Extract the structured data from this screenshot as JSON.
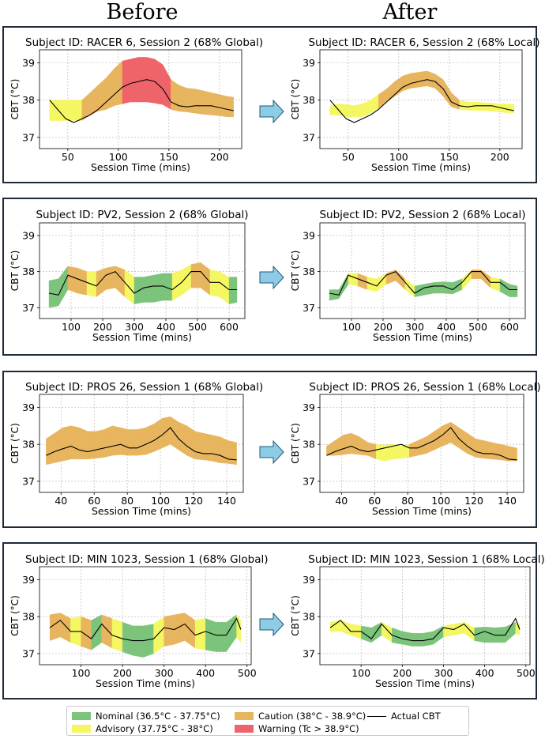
{
  "headers": {
    "before": "Before",
    "after": "After"
  },
  "colors": {
    "nominal": "#7cc47c",
    "advisory": "#f4f762",
    "caution": "#e8b55f",
    "warning": "#ef6469",
    "line": "#000000",
    "arrow": "#8ecbe4"
  },
  "legend": {
    "items": [
      {
        "key": "nominal",
        "label": "Nominal (36.5°C - 37.75°C)"
      },
      {
        "key": "advisory",
        "label": "Advisory (37.75°C - 38°C)"
      },
      {
        "key": "caution",
        "label": "Caution (38°C - 38.9°C)"
      },
      {
        "key": "warning",
        "label": "Warning (Tc > 38.9°C)"
      },
      {
        "key": "line",
        "label": "Actual CBT"
      }
    ]
  },
  "chart_data": [
    {
      "type": "area",
      "title": "Subject ID: RACER 6, Session 2 (68% Global)",
      "xlabel": "Session Time (mins)",
      "ylabel": "CBT (°C)",
      "xlim": [
        22,
        222
      ],
      "ylim": [
        36.7,
        39.35
      ],
      "xticks": [
        50,
        100,
        150,
        200
      ],
      "yticks": [
        37,
        38,
        39
      ],
      "x": [
        32,
        40,
        48,
        56,
        64,
        72,
        80,
        88,
        96,
        104,
        112,
        120,
        128,
        136,
        144,
        152,
        160,
        168,
        176,
        184,
        192,
        200,
        208,
        214
      ],
      "cbt": [
        38.0,
        37.75,
        37.5,
        37.4,
        37.5,
        37.6,
        37.75,
        37.95,
        38.15,
        38.35,
        38.45,
        38.5,
        38.55,
        38.5,
        38.3,
        37.95,
        37.85,
        37.82,
        37.85,
        37.85,
        37.85,
        37.8,
        37.75,
        37.72
      ],
      "upper": [
        38.0,
        38.0,
        38.0,
        38.0,
        38.0,
        38.2,
        38.4,
        38.6,
        38.85,
        39.05,
        39.1,
        39.15,
        39.15,
        39.1,
        38.95,
        38.55,
        38.4,
        38.32,
        38.3,
        38.25,
        38.2,
        38.15,
        38.1,
        38.08
      ],
      "lower": [
        37.45,
        37.45,
        37.45,
        37.45,
        37.45,
        37.6,
        37.7,
        37.75,
        37.85,
        37.9,
        37.95,
        37.95,
        37.95,
        37.92,
        37.88,
        37.75,
        37.7,
        37.68,
        37.65,
        37.62,
        37.6,
        37.58,
        37.55,
        37.55
      ],
      "zones": [
        "advisory",
        "advisory",
        "advisory",
        "advisory",
        "caution",
        "caution",
        "caution",
        "caution",
        "caution",
        "warning",
        "warning",
        "warning",
        "warning",
        "warning",
        "warning",
        "caution",
        "caution",
        "caution",
        "caution",
        "caution",
        "caution",
        "caution",
        "caution",
        "caution"
      ]
    },
    {
      "type": "area",
      "title": "Subject ID: RACER 6, Session 2 (68% Local)",
      "xlabel": "Session Time (mins)",
      "ylabel": "CBT (°C)",
      "xlim": [
        22,
        222
      ],
      "ylim": [
        36.7,
        39.35
      ],
      "xticks": [
        50,
        100,
        150,
        200
      ],
      "yticks": [
        37,
        38,
        39
      ],
      "x": [
        32,
        40,
        48,
        56,
        64,
        72,
        80,
        88,
        96,
        104,
        112,
        120,
        128,
        136,
        144,
        152,
        160,
        168,
        176,
        184,
        192,
        200,
        208,
        214
      ],
      "cbt": [
        38.0,
        37.75,
        37.5,
        37.4,
        37.5,
        37.6,
        37.75,
        37.95,
        38.15,
        38.35,
        38.45,
        38.5,
        38.55,
        38.5,
        38.3,
        37.95,
        37.85,
        37.82,
        37.85,
        37.85,
        37.85,
        37.8,
        37.75,
        37.72
      ],
      "upper": [
        37.85,
        37.9,
        37.88,
        37.85,
        37.9,
        38.0,
        38.15,
        38.3,
        38.5,
        38.65,
        38.72,
        38.75,
        38.78,
        38.7,
        38.55,
        38.2,
        38.0,
        37.95,
        37.95,
        37.93,
        37.92,
        37.9,
        37.9,
        37.88
      ],
      "lower": [
        37.6,
        37.6,
        37.55,
        37.55,
        37.55,
        37.65,
        37.78,
        37.95,
        38.1,
        38.25,
        38.32,
        38.35,
        38.38,
        38.32,
        38.1,
        37.82,
        37.75,
        37.73,
        37.72,
        37.72,
        37.7,
        37.68,
        37.66,
        37.66
      ],
      "zones": [
        "advisory",
        "advisory",
        "advisory",
        "advisory",
        "advisory",
        "advisory",
        "caution",
        "caution",
        "caution",
        "caution",
        "caution",
        "caution",
        "caution",
        "caution",
        "caution",
        "caution",
        "advisory",
        "advisory",
        "advisory",
        "advisory",
        "advisory",
        "advisory",
        "advisory",
        "advisory"
      ]
    },
    {
      "type": "area",
      "title": "Subject ID: PV2, Session 2 (68% Global)",
      "xlabel": "Session Time (mins)",
      "ylabel": "CBT (°C)",
      "xlim": [
        0,
        650
      ],
      "ylim": [
        36.7,
        39.35
      ],
      "xticks": [
        100,
        200,
        300,
        400,
        500,
        600
      ],
      "yticks": [
        37,
        38,
        39
      ],
      "x": [
        30,
        60,
        90,
        120,
        150,
        180,
        210,
        240,
        270,
        300,
        330,
        360,
        390,
        420,
        450,
        480,
        510,
        540,
        570,
        600,
        625
      ],
      "cbt": [
        37.4,
        37.35,
        37.9,
        37.8,
        37.7,
        37.6,
        37.9,
        38.0,
        37.7,
        37.4,
        37.55,
        37.6,
        37.6,
        37.5,
        37.7,
        38.0,
        38.0,
        37.7,
        37.7,
        37.5,
        37.5
      ],
      "upper": [
        37.75,
        37.8,
        38.15,
        38.1,
        38.0,
        38.0,
        38.1,
        38.15,
        38.05,
        37.85,
        37.85,
        37.9,
        37.95,
        37.95,
        38.05,
        38.2,
        38.25,
        38.05,
        38.0,
        37.85,
        37.85
      ],
      "lower": [
        37.0,
        37.05,
        37.5,
        37.4,
        37.35,
        37.3,
        37.5,
        37.55,
        37.3,
        37.1,
        37.15,
        37.15,
        37.2,
        37.2,
        37.35,
        37.55,
        37.55,
        37.35,
        37.3,
        37.1,
        37.15
      ],
      "zones": [
        "nominal",
        "nominal",
        "caution",
        "caution",
        "advisory",
        "caution",
        "caution",
        "caution",
        "advisory",
        "nominal",
        "nominal",
        "nominal",
        "nominal",
        "advisory",
        "advisory",
        "caution",
        "caution",
        "advisory",
        "advisory",
        "nominal",
        "nominal"
      ]
    },
    {
      "type": "area",
      "title": "Subject ID: PV2, Session 2 (68% Local)",
      "xlabel": "Session Time (mins)",
      "ylabel": "CBT (°C)",
      "xlim": [
        0,
        650
      ],
      "ylim": [
        36.7,
        39.35
      ],
      "xticks": [
        100,
        200,
        300,
        400,
        500,
        600
      ],
      "yticks": [
        37,
        38,
        39
      ],
      "x": [
        30,
        60,
        90,
        120,
        150,
        180,
        210,
        240,
        270,
        300,
        330,
        360,
        390,
        420,
        450,
        480,
        510,
        540,
        570,
        600,
        625
      ],
      "cbt": [
        37.4,
        37.35,
        37.9,
        37.8,
        37.7,
        37.6,
        37.9,
        38.0,
        37.7,
        37.4,
        37.55,
        37.6,
        37.6,
        37.5,
        37.7,
        38.0,
        38.0,
        37.7,
        37.7,
        37.5,
        37.5
      ],
      "upper": [
        37.5,
        37.5,
        37.95,
        37.95,
        37.85,
        37.8,
        37.95,
        38.05,
        37.8,
        37.6,
        37.65,
        37.7,
        37.72,
        37.7,
        37.8,
        38.05,
        38.05,
        37.85,
        37.8,
        37.65,
        37.6
      ],
      "lower": [
        37.2,
        37.25,
        37.65,
        37.6,
        37.5,
        37.45,
        37.65,
        37.75,
        37.5,
        37.3,
        37.35,
        37.4,
        37.4,
        37.38,
        37.5,
        37.8,
        37.8,
        37.55,
        37.45,
        37.3,
        37.3
      ],
      "zones": [
        "nominal",
        "nominal",
        "advisory",
        "caution",
        "advisory",
        "advisory",
        "caution",
        "caution",
        "advisory",
        "nominal",
        "nominal",
        "nominal",
        "nominal",
        "nominal",
        "advisory",
        "caution",
        "caution",
        "advisory",
        "nominal",
        "nominal",
        "nominal"
      ]
    },
    {
      "type": "area",
      "title": "Subject ID: PROS 26, Session 1 (68% Global)",
      "xlabel": "Session Time (mins)",
      "ylabel": "CBT (°C)",
      "xlim": [
        27,
        150
      ],
      "ylim": [
        36.7,
        39.35
      ],
      "xticks": [
        40,
        60,
        80,
        100,
        120,
        140
      ],
      "yticks": [
        37,
        38,
        39
      ],
      "x": [
        31,
        36,
        41,
        46,
        51,
        56,
        61,
        66,
        71,
        76,
        81,
        86,
        91,
        96,
        101,
        106,
        111,
        116,
        121,
        126,
        131,
        136,
        141,
        146
      ],
      "cbt": [
        37.7,
        37.8,
        37.88,
        37.95,
        37.85,
        37.8,
        37.85,
        37.9,
        37.95,
        38.0,
        37.9,
        37.9,
        38.0,
        38.1,
        38.25,
        38.45,
        38.15,
        37.95,
        37.8,
        37.75,
        37.75,
        37.7,
        37.6,
        37.58
      ],
      "upper": [
        38.15,
        38.3,
        38.45,
        38.5,
        38.45,
        38.35,
        38.35,
        38.4,
        38.5,
        38.45,
        38.4,
        38.4,
        38.45,
        38.55,
        38.7,
        38.75,
        38.6,
        38.5,
        38.35,
        38.3,
        38.25,
        38.2,
        38.1,
        38.05
      ],
      "lower": [
        37.45,
        37.5,
        37.55,
        37.6,
        37.6,
        37.6,
        37.62,
        37.65,
        37.7,
        37.72,
        37.7,
        37.7,
        37.72,
        37.8,
        37.9,
        38.0,
        37.85,
        37.7,
        37.6,
        37.58,
        37.55,
        37.5,
        37.48,
        37.45
      ],
      "zones": [
        "caution",
        "caution",
        "caution",
        "caution",
        "caution",
        "caution",
        "caution",
        "caution",
        "caution",
        "caution",
        "caution",
        "caution",
        "caution",
        "caution",
        "caution",
        "caution",
        "caution",
        "caution",
        "caution",
        "caution",
        "caution",
        "caution",
        "caution",
        "caution"
      ]
    },
    {
      "type": "area",
      "title": "Subject ID: PROS 26, Session 1 (68% Local)",
      "xlabel": "Session Time (mins)",
      "ylabel": "CBT (°C)",
      "xlim": [
        27,
        150
      ],
      "ylim": [
        36.7,
        39.35
      ],
      "xticks": [
        40,
        60,
        80,
        100,
        120,
        140
      ],
      "yticks": [
        37,
        38,
        39
      ],
      "x": [
        31,
        36,
        41,
        46,
        51,
        56,
        61,
        66,
        71,
        76,
        81,
        86,
        91,
        96,
        101,
        106,
        111,
        116,
        121,
        126,
        131,
        136,
        141,
        146
      ],
      "cbt": [
        37.7,
        37.8,
        37.88,
        37.95,
        37.85,
        37.8,
        37.85,
        37.9,
        37.95,
        38.0,
        37.9,
        37.9,
        38.0,
        38.1,
        38.25,
        38.45,
        38.15,
        37.95,
        37.8,
        37.75,
        37.75,
        37.7,
        37.6,
        37.58
      ],
      "upper": [
        37.95,
        38.1,
        38.25,
        38.3,
        38.2,
        38.05,
        38.0,
        37.98,
        38.0,
        37.95,
        38.0,
        38.1,
        38.2,
        38.35,
        38.5,
        38.6,
        38.45,
        38.3,
        38.15,
        38.1,
        38.05,
        38.0,
        37.95,
        37.9
      ],
      "lower": [
        37.7,
        37.7,
        37.72,
        37.75,
        37.72,
        37.7,
        37.6,
        37.55,
        37.6,
        37.62,
        37.65,
        37.7,
        37.75,
        37.85,
        37.95,
        38.05,
        37.9,
        37.75,
        37.65,
        37.62,
        37.6,
        37.58,
        37.55,
        37.55
      ],
      "zones": [
        "caution",
        "caution",
        "caution",
        "caution",
        "caution",
        "caution",
        "advisory",
        "advisory",
        "advisory",
        "advisory",
        "caution",
        "caution",
        "caution",
        "caution",
        "caution",
        "caution",
        "caution",
        "caution",
        "caution",
        "caution",
        "caution",
        "caution",
        "caution",
        "advisory"
      ]
    },
    {
      "type": "area",
      "title": "Subject ID: MIN 1023, Session 1 (68% Global)",
      "xlabel": "Session Time (mins)",
      "ylabel": "CBT (°C)",
      "xlim": [
        0,
        510
      ],
      "ylim": [
        36.7,
        39.35
      ],
      "xticks": [
        100,
        200,
        300,
        400,
        500
      ],
      "yticks": [
        37,
        38,
        39
      ],
      "x": [
        25,
        50,
        75,
        100,
        125,
        150,
        175,
        200,
        225,
        250,
        275,
        300,
        325,
        350,
        375,
        400,
        425,
        450,
        475,
        485
      ],
      "cbt": [
        37.7,
        37.9,
        37.6,
        37.6,
        37.4,
        37.8,
        37.5,
        37.4,
        37.35,
        37.35,
        37.4,
        37.7,
        37.65,
        37.8,
        37.5,
        37.6,
        37.5,
        37.5,
        37.95,
        37.65
      ],
      "upper": [
        38.05,
        38.1,
        37.95,
        38.0,
        37.9,
        38.05,
        37.95,
        37.85,
        37.75,
        37.75,
        37.8,
        38.0,
        38.05,
        38.1,
        37.9,
        37.95,
        37.85,
        37.85,
        38.05,
        37.9
      ],
      "lower": [
        37.35,
        37.45,
        37.3,
        37.2,
        37.1,
        37.3,
        37.15,
        37.05,
        36.95,
        36.9,
        37.0,
        37.2,
        37.25,
        37.35,
        37.15,
        37.1,
        37.05,
        37.05,
        37.45,
        37.3
      ],
      "zones": [
        "caution",
        "caution",
        "advisory",
        "caution",
        "nominal",
        "caution",
        "advisory",
        "nominal",
        "nominal",
        "nominal",
        "advisory",
        "caution",
        "caution",
        "caution",
        "advisory",
        "nominal",
        "nominal",
        "nominal",
        "advisory",
        "advisory"
      ]
    },
    {
      "type": "area",
      "title": "Subject ID: MIN 1023, Session 1 (68% Local)",
      "xlabel": "Session Time (mins)",
      "ylabel": "CBT (°C)",
      "xlim": [
        0,
        510
      ],
      "ylim": [
        36.7,
        39.35
      ],
      "xticks": [
        100,
        200,
        300,
        400,
        500
      ],
      "yticks": [
        37,
        38,
        39
      ],
      "x": [
        25,
        50,
        75,
        100,
        125,
        150,
        175,
        200,
        225,
        250,
        275,
        300,
        325,
        350,
        375,
        400,
        425,
        450,
        475,
        485
      ],
      "cbt": [
        37.7,
        37.9,
        37.6,
        37.6,
        37.4,
        37.8,
        37.5,
        37.4,
        37.35,
        37.35,
        37.4,
        37.7,
        37.65,
        37.8,
        37.5,
        37.6,
        37.5,
        37.5,
        37.95,
        37.65
      ],
      "upper": [
        37.85,
        37.9,
        37.8,
        37.75,
        37.7,
        37.85,
        37.7,
        37.6,
        37.55,
        37.55,
        37.6,
        37.75,
        37.8,
        37.85,
        37.7,
        37.72,
        37.7,
        37.72,
        37.85,
        37.8
      ],
      "lower": [
        37.6,
        37.6,
        37.5,
        37.4,
        37.3,
        37.5,
        37.3,
        37.25,
        37.2,
        37.2,
        37.25,
        37.45,
        37.5,
        37.55,
        37.35,
        37.3,
        37.3,
        37.3,
        37.55,
        37.5
      ],
      "zones": [
        "advisory",
        "advisory",
        "advisory",
        "nominal",
        "nominal",
        "advisory",
        "nominal",
        "nominal",
        "nominal",
        "nominal",
        "nominal",
        "advisory",
        "advisory",
        "advisory",
        "nominal",
        "nominal",
        "nominal",
        "nominal",
        "advisory",
        "nominal"
      ]
    }
  ]
}
